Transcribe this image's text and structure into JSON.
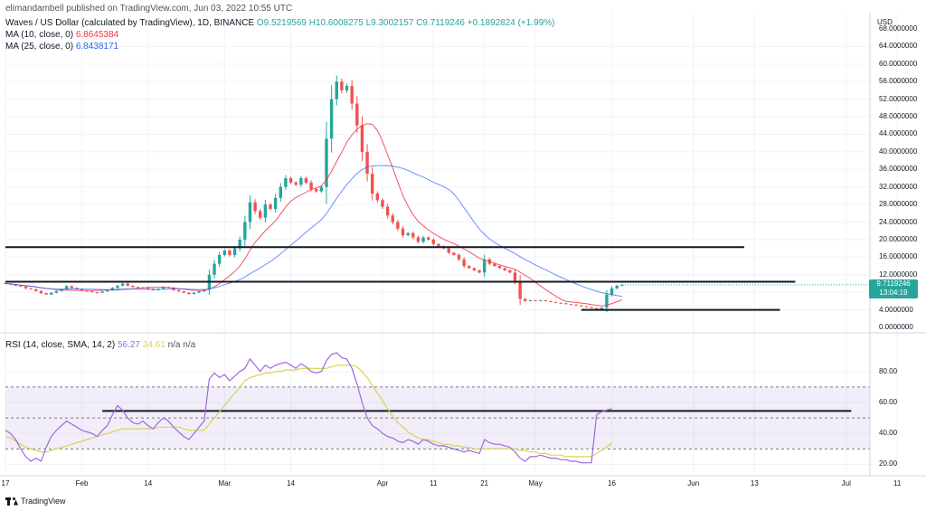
{
  "header": {
    "published": "elimandambell published on TradingView.com, Jun 03, 2022 10:55 UTC",
    "symbol": "Waves / US Dollar (calculated by TradingView), 1D, BINANCE",
    "open": "O9.5219569",
    "high": "H10.6008275",
    "low": "L9.3002157",
    "close": "C9.7119246",
    "change": "+0.1892824 (+1.99%)",
    "ma10_label": "MA (10, close, 0)",
    "ma10_value": "6.8645384",
    "ma25_label": "MA (25, close, 0)",
    "ma25_value": "6.8438171",
    "rsi_label": "RSI (14, close, SMA, 14, 2)",
    "rsi_value": "56.27",
    "rsi_sma_value": "34.61",
    "rsi_extra": "n/a n/a"
  },
  "price_axis": {
    "currency": "USD",
    "ticks": [
      "68.0000000",
      "64.0000000",
      "60.0000000",
      "56.0000000",
      "52.0000000",
      "48.0000000",
      "44.0000000",
      "40.0000000",
      "36.0000000",
      "32.0000000",
      "28.0000000",
      "24.0000000",
      "20.0000000",
      "16.0000000",
      "12.0000000",
      "8.0000000",
      "4.0000000",
      "0.0000000"
    ],
    "current_price": "9.7119246",
    "countdown": "13:04:19"
  },
  "rsi_axis": {
    "ticks": [
      "80.00",
      "60.00",
      "40.00",
      "20.00"
    ]
  },
  "time_axis": {
    "labels": [
      "17",
      "Feb",
      "14",
      "Mar",
      "14",
      "Apr",
      "11",
      "21",
      "May",
      "16",
      "Jun",
      "13",
      "Jul",
      "11"
    ]
  },
  "brand": "TradingView",
  "colors": {
    "up": "#26a69a",
    "down": "#ef5350",
    "ma10": "#f23645",
    "ma25": "#2962ff",
    "rsi": "#9c6ade",
    "rsi_sma": "#d6d64a",
    "band": "#7e57c2"
  },
  "chart_data": [
    {
      "type": "candlestick",
      "title": "Waves / US Dollar (calculated by TradingView), 1D, BINANCE",
      "ylim": [
        0,
        68
      ],
      "start_date": "2022-01-17",
      "close": [
        10.0,
        9.8,
        9.5,
        9.3,
        8.9,
        8.7,
        8.3,
        7.8,
        7.5,
        7.9,
        8.3,
        8.7,
        9.4,
        9.0,
        8.7,
        8.4,
        8.2,
        8.0,
        7.9,
        8.2,
        8.5,
        9.0,
        9.5,
        10.0,
        9.5,
        9.2,
        9.0,
        9.1,
        8.8,
        8.5,
        8.8,
        9.2,
        9.0,
        8.5,
        8.2,
        7.9,
        7.6,
        7.9,
        8.2,
        8.6,
        12.0,
        14.5,
        16.5,
        17.5,
        16.5,
        18.0,
        20.0,
        24.0,
        28.5,
        26.5,
        25.0,
        28.0,
        27.0,
        29.5,
        32.0,
        34.0,
        33.0,
        32.5,
        34.0,
        33.0,
        31.5,
        31.0,
        32.0,
        43.0,
        52.0,
        56.0,
        54.0,
        55.0,
        51.0,
        46.0,
        40.0,
        35.0,
        30.5,
        29.0,
        27.5,
        25.5,
        24.0,
        22.5,
        21.0,
        21.5,
        20.5,
        19.5,
        20.5,
        20.0,
        19.0,
        18.5,
        18.0,
        17.0,
        16.5,
        15.5,
        14.0,
        13.5,
        13.0,
        12.5,
        15.5,
        14.5,
        14.0,
        13.5,
        13.0,
        12.5,
        10.5,
        6.5,
        6.0,
        6.2,
        6.0,
        6.2,
        6.0,
        5.8,
        5.6,
        5.5,
        5.3,
        5.2,
        5.0,
        4.8,
        4.6,
        4.4,
        4.2,
        4.5,
        7.5,
        8.9,
        9.5,
        9.7
      ]
    },
    {
      "type": "line",
      "title": "RSI (14, close, SMA, 14, 2)",
      "ylim": [
        15,
        95
      ],
      "series": [
        {
          "name": "RSI",
          "values": [
            42,
            40,
            36,
            30,
            25,
            22,
            24,
            22,
            31,
            38,
            42,
            45,
            48,
            46,
            44,
            42,
            41,
            40,
            38,
            42,
            45,
            52,
            58,
            55,
            50,
            47,
            46,
            48,
            45,
            43,
            47,
            50,
            48,
            44,
            41,
            38,
            36,
            40,
            44,
            48,
            75,
            79,
            76,
            78,
            74,
            77,
            80,
            82,
            88,
            84,
            80,
            84,
            82,
            84,
            85,
            86,
            84,
            82,
            85,
            83,
            80,
            79,
            80,
            87,
            91,
            92,
            89,
            88,
            82,
            72,
            60,
            50,
            45,
            43,
            40,
            38,
            37,
            35,
            34,
            36,
            35,
            33,
            36,
            35,
            33,
            32,
            32,
            31,
            30,
            29,
            28,
            29,
            28,
            27,
            36,
            34,
            33,
            33,
            32,
            31,
            28,
            24,
            22,
            25,
            25,
            26,
            25,
            24,
            24,
            23,
            23,
            22,
            22,
            21,
            21,
            21,
            52,
            54,
            55,
            56
          ]
        },
        {
          "name": "SMA",
          "values": [
            38,
            37,
            35,
            33,
            31,
            30,
            29,
            28,
            28,
            29,
            30,
            31,
            32,
            33,
            34,
            35,
            36,
            37,
            38,
            39,
            40,
            41,
            42,
            43,
            43,
            43,
            43,
            43,
            43,
            43,
            44,
            44,
            44,
            44,
            44,
            43,
            42,
            42,
            42,
            42,
            46,
            50,
            54,
            58,
            62,
            66,
            70,
            74,
            76,
            77,
            78,
            79,
            79,
            80,
            80,
            81,
            81,
            81,
            82,
            82,
            82,
            82,
            82,
            82,
            83,
            84,
            84,
            84,
            84,
            83,
            80,
            76,
            71,
            66,
            61,
            56,
            51,
            47,
            44,
            41,
            39,
            37,
            36,
            36,
            35,
            34,
            33,
            33,
            32,
            32,
            31,
            31,
            30,
            30,
            30,
            30,
            30,
            30,
            30,
            30,
            30,
            29,
            29,
            28,
            28,
            27,
            27,
            26,
            26,
            26,
            25,
            25,
            25,
            25,
            25,
            25,
            27,
            29,
            31,
            34
          ]
        }
      ]
    }
  ]
}
